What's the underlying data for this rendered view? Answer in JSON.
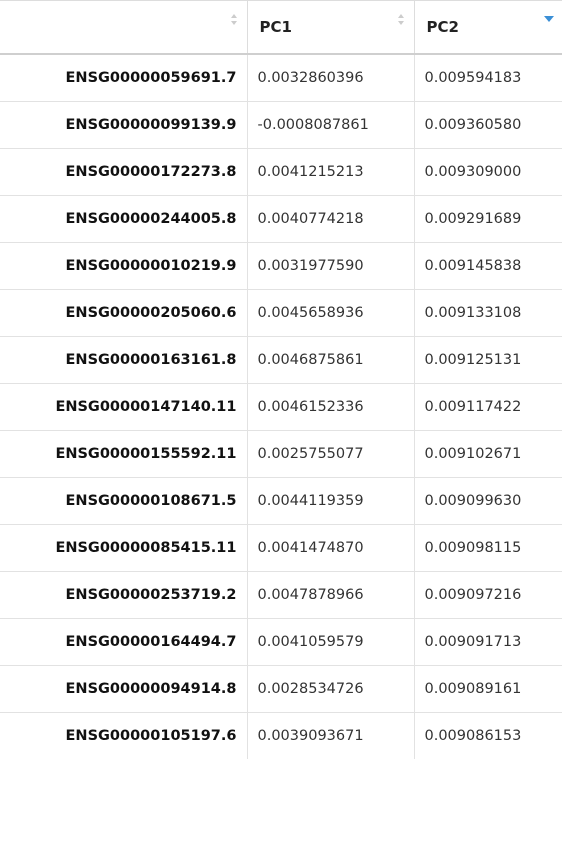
{
  "table": {
    "columns": [
      {
        "label": "",
        "sort_state": "none"
      },
      {
        "label": "PC1",
        "sort_state": "none"
      },
      {
        "label": "PC2",
        "sort_state": "descending"
      }
    ],
    "sort_colors": {
      "inactive": "#cccccc",
      "active": "#3b8fd6"
    },
    "rows": [
      {
        "name": "ENSG00000059691.7",
        "pc1": "0.0032860396",
        "pc2": "0.009594183"
      },
      {
        "name": "ENSG00000099139.9",
        "pc1": "-0.0008087861",
        "pc2": "0.009360580"
      },
      {
        "name": "ENSG00000172273.8",
        "pc1": "0.0041215213",
        "pc2": "0.009309000"
      },
      {
        "name": "ENSG00000244005.8",
        "pc1": "0.0040774218",
        "pc2": "0.009291689"
      },
      {
        "name": "ENSG00000010219.9",
        "pc1": "0.0031977590",
        "pc2": "0.009145838"
      },
      {
        "name": "ENSG00000205060.6",
        "pc1": "0.0045658936",
        "pc2": "0.009133108"
      },
      {
        "name": "ENSG00000163161.8",
        "pc1": "0.0046875861",
        "pc2": "0.009125131"
      },
      {
        "name": "ENSG00000147140.11",
        "pc1": "0.0046152336",
        "pc2": "0.009117422"
      },
      {
        "name": "ENSG00000155592.11",
        "pc1": "0.0025755077",
        "pc2": "0.009102671"
      },
      {
        "name": "ENSG00000108671.5",
        "pc1": "0.0044119359",
        "pc2": "0.009099630"
      },
      {
        "name": "ENSG00000085415.11",
        "pc1": "0.0041474870",
        "pc2": "0.009098115"
      },
      {
        "name": "ENSG00000253719.2",
        "pc1": "0.0047878966",
        "pc2": "0.009097216"
      },
      {
        "name": "ENSG00000164494.7",
        "pc1": "0.0041059579",
        "pc2": "0.009091713"
      },
      {
        "name": "ENSG00000094914.8",
        "pc1": "0.0028534726",
        "pc2": "0.009089161"
      },
      {
        "name": "ENSG00000105197.6",
        "pc1": "0.0039093671",
        "pc2": "0.009086153"
      }
    ]
  }
}
